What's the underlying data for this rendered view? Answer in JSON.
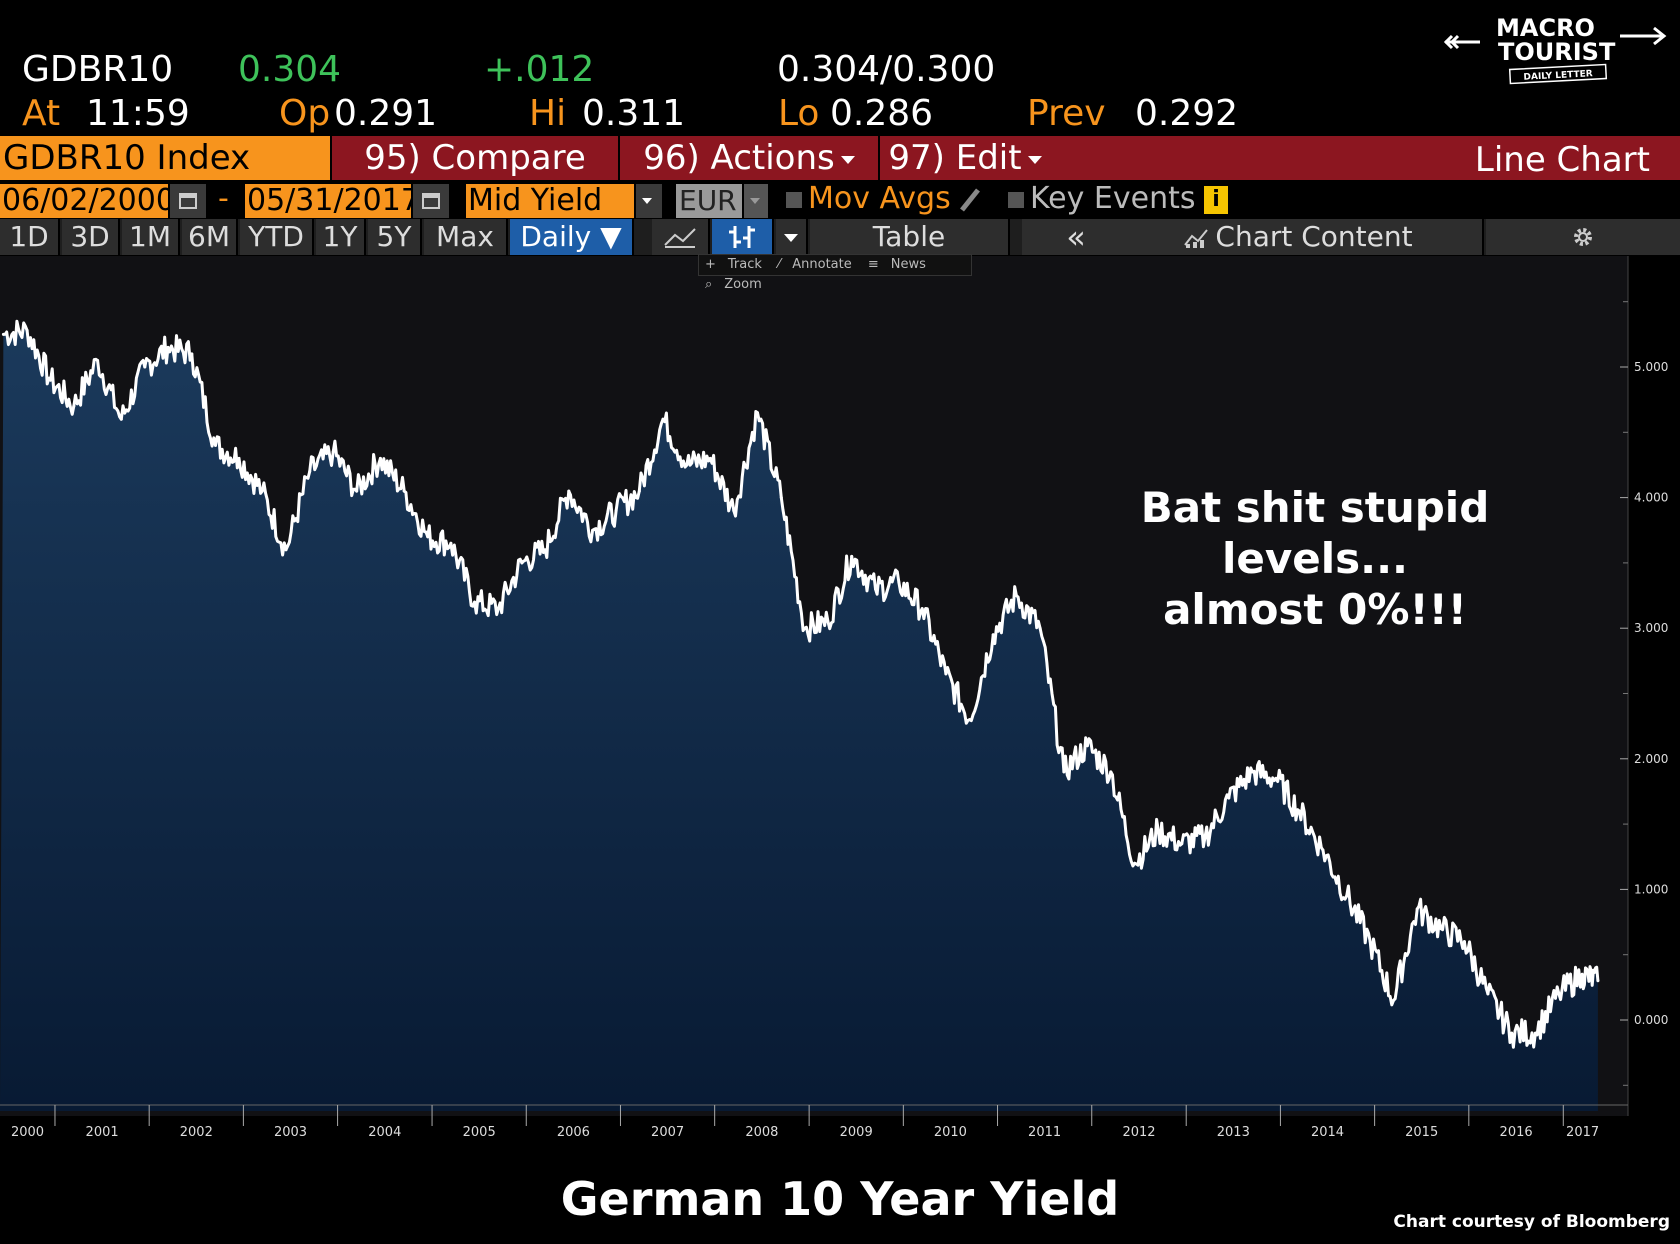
{
  "header": {
    "ticker": "GDBR10",
    "last": "0.304",
    "change": "+.012",
    "bid_ask": "0.304/0.300",
    "at_label": "At",
    "at_value": "11:59",
    "open_label": "Op",
    "open_value": "0.291",
    "high_label": "Hi",
    "high_value": "0.311",
    "low_label": "Lo",
    "low_value": "0.286",
    "prev_label": "Prev",
    "prev_value": "0.292"
  },
  "logo": {
    "line1": "MACRO",
    "line2": "TOURIST",
    "tagline": "DAILY LETTER"
  },
  "function_bar": {
    "security": "GDBR10 Index",
    "compare": "95) Compare",
    "actions": "96) Actions",
    "edit": "97) Edit",
    "chart_name": "Line Chart"
  },
  "settings_row": {
    "start_date": "06/02/2000",
    "separator": "-",
    "end_date": "05/31/2017",
    "field": "Mid Yield",
    "currency": "EUR",
    "mov_avgs": "Mov Avgs",
    "key_events": "Key Events",
    "info_icon_text": "i"
  },
  "period_buttons": [
    "1D",
    "3D",
    "1M",
    "6M",
    "YTD",
    "1Y",
    "5Y",
    "Max"
  ],
  "frequency": "Daily ▼",
  "table_label": "Table",
  "collapse_glyph": "«",
  "chart_content_label": "Chart Content",
  "tools": {
    "track": "Track",
    "annotate": "Annotate",
    "news": "News",
    "zoom": "Zoom"
  },
  "annotation": [
    "Bat shit stupid",
    "levels...",
    "almost 0%!!!"
  ],
  "footer": {
    "title": "German 10 Year Yield",
    "credit": "Chart courtesy of Bloomberg"
  },
  "colors": {
    "background": "#000000",
    "plot_background": "#111114",
    "area_fill_top": "#1b3a5c",
    "area_fill_bottom": "#081a33",
    "line": "#ffffff",
    "amber": "#f7941d",
    "green": "#3ec25a",
    "function_bar": "#8c1620",
    "active_button": "#1e5ea8"
  },
  "icons": [
    "calendar-icon",
    "checkbox-icon",
    "pencil-icon",
    "info-icon",
    "line-chart-icon",
    "bar-chart-icon",
    "gear-icon",
    "chart-content-icon",
    "crosshair-icon",
    "news-icon",
    "zoom-icon",
    "arrow-icon"
  ],
  "chart_data": {
    "type": "area",
    "title": "German 10 Year Yield",
    "xlabel": "",
    "ylabel": "",
    "x_ticks": [
      "2000",
      "2001",
      "2002",
      "2003",
      "2004",
      "2005",
      "2006",
      "2007",
      "2008",
      "2009",
      "2010",
      "2011",
      "2012",
      "2013",
      "2014",
      "2015",
      "2016",
      "2017"
    ],
    "y_ticks": [
      "0.000",
      "1.000",
      "2.000",
      "3.000",
      "4.000",
      "5.000"
    ],
    "ylim": [
      -0.5,
      5.6
    ],
    "xlim": [
      "2000-06-02",
      "2017-05-31"
    ],
    "grid": false,
    "legend": "none",
    "series": [
      {
        "x": [
          "2000-06",
          "2000-09",
          "2000-12",
          "2001-03",
          "2001-06",
          "2001-09",
          "2001-12",
          "2002-03",
          "2002-06",
          "2002-09",
          "2002-12",
          "2003-03",
          "2003-06",
          "2003-09",
          "2003-12",
          "2004-03",
          "2004-06",
          "2004-09",
          "2004-12",
          "2005-03",
          "2005-06",
          "2005-09",
          "2005-12",
          "2006-03",
          "2006-06",
          "2006-09",
          "2006-12",
          "2007-03",
          "2007-06",
          "2007-09",
          "2007-12",
          "2008-03",
          "2008-06",
          "2008-09",
          "2008-12",
          "2009-03",
          "2009-06",
          "2009-09",
          "2009-12",
          "2010-03",
          "2010-06",
          "2010-09",
          "2010-12",
          "2011-03",
          "2011-06",
          "2011-09",
          "2011-12",
          "2012-03",
          "2012-06",
          "2012-09",
          "2012-12",
          "2013-03",
          "2013-06",
          "2013-09",
          "2013-12",
          "2014-03",
          "2014-06",
          "2014-09",
          "2014-12",
          "2015-03",
          "2015-06",
          "2015-09",
          "2015-12",
          "2016-03",
          "2016-06",
          "2016-09",
          "2016-12",
          "2017-03",
          "2017-05"
        ],
        "y": [
          5.25,
          5.28,
          4.9,
          4.7,
          5.05,
          4.6,
          5.0,
          5.15,
          5.1,
          4.4,
          4.3,
          4.05,
          3.6,
          4.2,
          4.35,
          4.05,
          4.3,
          4.05,
          3.7,
          3.65,
          3.2,
          3.15,
          3.5,
          3.6,
          4.05,
          3.75,
          3.9,
          4.05,
          4.6,
          4.25,
          4.3,
          3.9,
          4.65,
          4.0,
          3.0,
          3.05,
          3.55,
          3.3,
          3.35,
          3.15,
          2.65,
          2.3,
          2.95,
          3.25,
          3.0,
          1.9,
          2.1,
          1.9,
          1.2,
          1.45,
          1.35,
          1.4,
          1.7,
          1.9,
          1.85,
          1.6,
          1.3,
          0.95,
          0.6,
          0.15,
          0.85,
          0.7,
          0.6,
          0.2,
          -0.1,
          -0.1,
          0.2,
          0.35,
          0.3
        ]
      }
    ]
  }
}
